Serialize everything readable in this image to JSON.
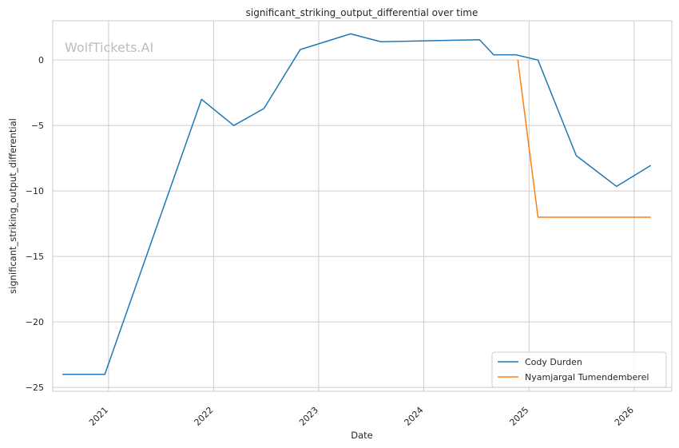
{
  "chart_data": {
    "type": "line",
    "title": "significant_striking_output_differential over time",
    "xlabel": "Date",
    "ylabel": "significant_striking_output_differential",
    "watermark": "WolfTickets.AI",
    "x_tick_labels": [
      "2021",
      "2022",
      "2023",
      "2024",
      "2025",
      "2026"
    ],
    "y_ticks": [
      0,
      -5,
      -10,
      -15,
      -20,
      -25
    ],
    "y_tick_labels": [
      "0",
      "−5",
      "−10",
      "−15",
      "−20",
      "−25"
    ],
    "xlim": [
      "2020-06-21",
      "2026-05-12"
    ],
    "ylim": [
      -25.3,
      3.0
    ],
    "grid": true,
    "legend_position": "lower-right",
    "series": [
      {
        "name": "Cody Durden",
        "color": "#1f77b4",
        "points": [
          {
            "x": "2020-07-25",
            "y": -24.0
          },
          {
            "x": "2020-12-19",
            "y": -24.0
          },
          {
            "x": "2021-11-20",
            "y": -3.0
          },
          {
            "x": "2022-03-12",
            "y": -5.0
          },
          {
            "x": "2022-06-25",
            "y": -3.7
          },
          {
            "x": "2022-10-29",
            "y": 0.8
          },
          {
            "x": "2023-04-22",
            "y": 2.0
          },
          {
            "x": "2023-08-05",
            "y": 1.4
          },
          {
            "x": "2024-07-13",
            "y": 1.55
          },
          {
            "x": "2024-08-31",
            "y": 0.4
          },
          {
            "x": "2024-11-16",
            "y": 0.4
          },
          {
            "x": "2025-02-01",
            "y": 0.0
          },
          {
            "x": "2025-06-14",
            "y": -7.3
          },
          {
            "x": "2025-11-01",
            "y": -9.65
          },
          {
            "x": "2026-02-28",
            "y": -8.05
          }
        ]
      },
      {
        "name": "Nyamjargal Tumendemberel",
        "color": "#ff7f0e",
        "points": [
          {
            "x": "2024-11-23",
            "y": 0.0
          },
          {
            "x": "2025-02-01",
            "y": -12.0
          },
          {
            "x": "2026-02-28",
            "y": -12.0
          }
        ]
      }
    ]
  }
}
